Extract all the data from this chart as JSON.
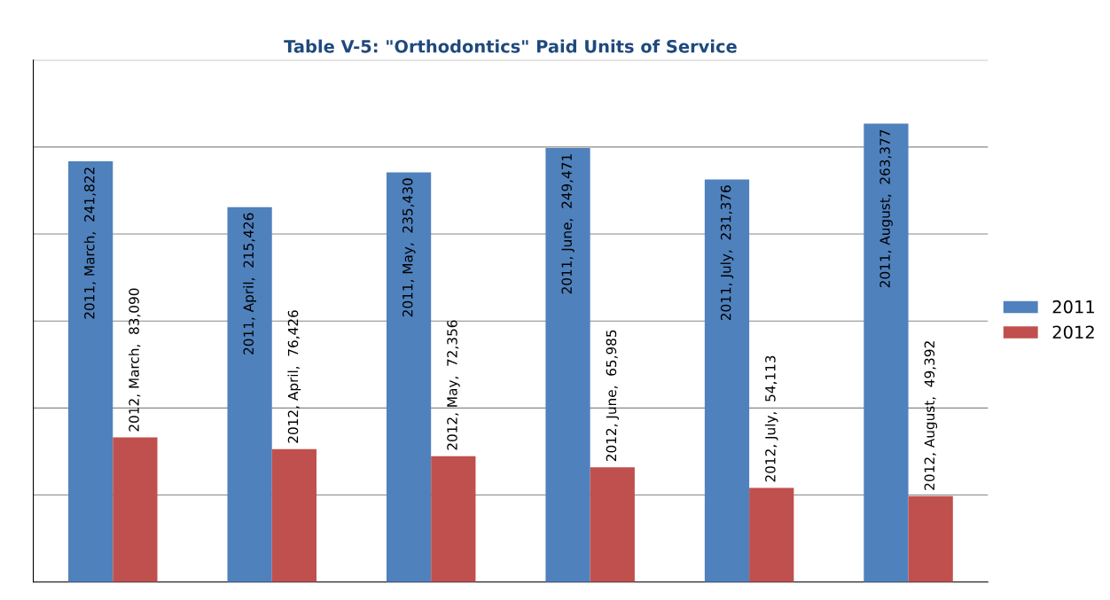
{
  "chart_data": {
    "type": "bar",
    "title": "Table V-5: \"Orthodontics\" Paid Units of Service",
    "categories": [
      null,
      null,
      null,
      null,
      null,
      null
    ],
    "series": [
      {
        "name": "2011",
        "color": "#4f81bd",
        "values": [
          241822,
          215426,
          235430,
          249471,
          231376,
          263377
        ],
        "value_labels": [
          "2011, March,  241,822",
          "2011, April,  215,426",
          "2011, May,  235,430",
          "2011, June,  249,471",
          "2011, July,  231,376",
          "2011, August,  263,377"
        ]
      },
      {
        "name": "2012",
        "color": "#c0504d",
        "values": [
          83090,
          76426,
          72356,
          65985,
          54113,
          49392
        ],
        "value_labels": [
          "2012, March,  83,090",
          "2012, April,  76,426",
          "2012, May,  72,356",
          "2012, June,  65,985",
          "2012, July,  54,113",
          "2012, August,  49,392"
        ]
      }
    ],
    "ylim": [
      0,
      300000
    ],
    "yticks": [
      {
        "value": 0,
        "label": null
      },
      {
        "value": 50000,
        "label": null
      },
      {
        "value": 100000,
        "label": null
      },
      {
        "value": 150000,
        "label": null
      },
      {
        "value": 200000,
        "label": null
      },
      {
        "value": 250000,
        "label": null
      },
      {
        "value": 300000,
        "label": null
      }
    ],
    "grid": "y",
    "legend": "right"
  }
}
